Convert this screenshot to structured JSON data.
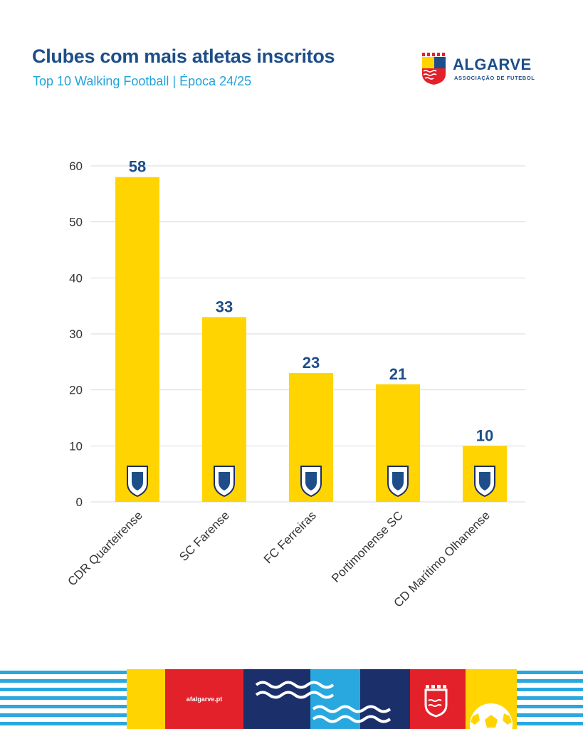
{
  "header": {
    "title": "Clubes com mais atletas inscritos",
    "subtitle": "Top 10 Walking Football | Época 24/25"
  },
  "logo": {
    "name": "ALGARVE",
    "subtitle": "ASSOCIAÇÃO DE FUTEBOL",
    "icon": "afa-crest-icon"
  },
  "footer": {
    "url": "afalgarve.pt"
  },
  "colors": {
    "title": "#1d4e89",
    "subtitle": "#1fa3dc",
    "bar": "#ffd400",
    "value_label": "#1d4e89",
    "grid": "#d9d9d9",
    "footer_red": "#e3212b",
    "footer_navy": "#1b2f6b",
    "footer_cyan": "#29a8e0",
    "footer_yellow": "#ffd400"
  },
  "chart_data": {
    "type": "bar",
    "title": "Clubes com mais atletas inscritos",
    "subtitle": "Top 10 Walking Football | Época 24/25",
    "xlabel": "",
    "ylabel": "",
    "categories": [
      "CDR Quarteirense",
      "SC Farense",
      "FC Ferreiras",
      "Portimonense SC",
      "CD Marítimo Olhanense"
    ],
    "values": [
      58,
      33,
      23,
      21,
      10
    ],
    "ylim": [
      0,
      60
    ],
    "yticks": [
      0,
      10,
      20,
      30,
      40,
      50,
      60
    ],
    "grid": true,
    "legend": "none",
    "data_labels": true,
    "bar_icons": [
      "cdr-quarteirense-crest-icon",
      "sc-farense-crest-icon",
      "fc-ferreiras-crest-icon",
      "portimonense-crest-icon",
      "cd-maritimo-olhanense-crest-icon"
    ]
  }
}
